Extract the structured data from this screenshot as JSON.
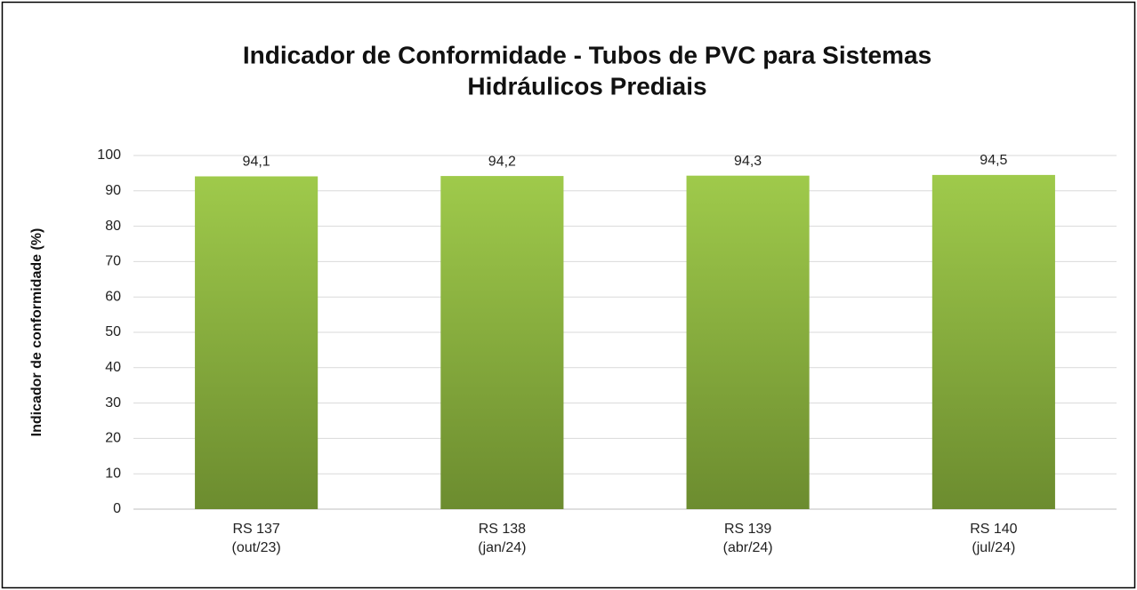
{
  "chart_data": {
    "type": "bar",
    "title": [
      "Indicador de Conformidade - Tubos de PVC para Sistemas",
      "Hidráulicos Prediais"
    ],
    "y_label": "Indicador de conformidade (%)",
    "categories": [
      [
        "RS 137",
        "(out/23)"
      ],
      [
        "RS 138",
        "(jan/24)"
      ],
      [
        "RS 139",
        "(abr/24)"
      ],
      [
        "RS 140",
        "(jul/24)"
      ]
    ],
    "values": [
      94.1,
      94.2,
      94.3,
      94.5
    ],
    "value_labels": [
      "94,1",
      "94,2",
      "94,3",
      "94,5"
    ],
    "color": "#8db543",
    "ylim": [
      0,
      100
    ],
    "yticks": [
      0,
      10,
      20,
      30,
      40,
      50,
      60,
      70,
      80,
      90,
      100
    ],
    "grid": true
  }
}
